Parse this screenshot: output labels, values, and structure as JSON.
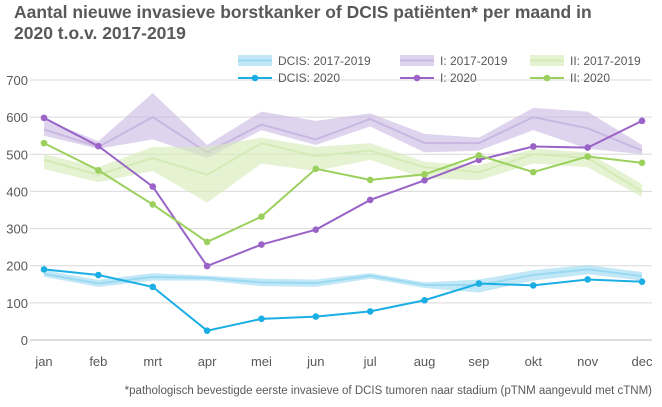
{
  "title_lines": [
    "Aantal nieuwe invasieve borstkanker of DCIS patiënten* per maand in",
    "2020 t.o.v. 2017-2019"
  ],
  "footnote": "*pathologisch bevestigde eerste invasieve of DCIS tumoren naar stadium (pTNM aangevuld met cTNM)",
  "chart_data": {
    "type": "line",
    "categories": [
      "jan",
      "feb",
      "mrt",
      "apr",
      "mei",
      "jun",
      "jul",
      "aug",
      "sep",
      "okt",
      "nov",
      "dec"
    ],
    "ylim": [
      0,
      700
    ],
    "yticks": [
      0,
      100,
      200,
      300,
      400,
      500,
      600,
      700
    ],
    "grid": true,
    "legend_position": "top-right",
    "bands": [
      {
        "name": "DCIS: 2017-2019",
        "color": "#9ad9f2",
        "low": [
          170,
          143,
          160,
          160,
          145,
          143,
          165,
          140,
          128,
          160,
          177,
          160
        ],
        "mid": [
          178,
          152,
          170,
          167,
          155,
          153,
          173,
          148,
          148,
          175,
          190,
          172
        ],
        "high": [
          188,
          162,
          180,
          173,
          165,
          163,
          180,
          155,
          163,
          188,
          202,
          183
        ]
      },
      {
        "name": "I: 2017-2019",
        "color": "#c9b7e2",
        "low": [
          550,
          515,
          540,
          490,
          565,
          525,
          575,
          505,
          510,
          565,
          515,
          500
        ],
        "mid": [
          567,
          520,
          600,
          505,
          580,
          540,
          595,
          530,
          530,
          600,
          570,
          510
        ],
        "high": [
          595,
          535,
          665,
          525,
          615,
          590,
          610,
          555,
          545,
          625,
          615,
          525
        ]
      },
      {
        "name": "II: 2017-2019",
        "color": "#d4ebb6",
        "low": [
          460,
          425,
          455,
          370,
          475,
          455,
          485,
          435,
          430,
          475,
          465,
          385
        ],
        "mid": [
          485,
          445,
          490,
          445,
          530,
          495,
          510,
          465,
          452,
          500,
          490,
          400
        ],
        "high": [
          500,
          465,
          520,
          520,
          545,
          520,
          530,
          480,
          470,
          515,
          505,
          420
        ]
      }
    ],
    "series": [
      {
        "name": "DCIS: 2020",
        "color": "#1aaee5",
        "values": [
          190,
          175,
          143,
          25,
          57,
          63,
          77,
          107,
          152,
          147,
          163,
          157
        ]
      },
      {
        "name": "I: 2020",
        "color": "#9a63c7",
        "values": [
          598,
          522,
          413,
          199,
          257,
          297,
          377,
          430,
          485,
          521,
          518,
          590
        ]
      },
      {
        "name": "II: 2020",
        "color": "#9bd05d",
        "values": [
          530,
          457,
          365,
          264,
          332,
          461,
          431,
          446,
          497,
          452,
          494,
          477
        ]
      }
    ]
  }
}
